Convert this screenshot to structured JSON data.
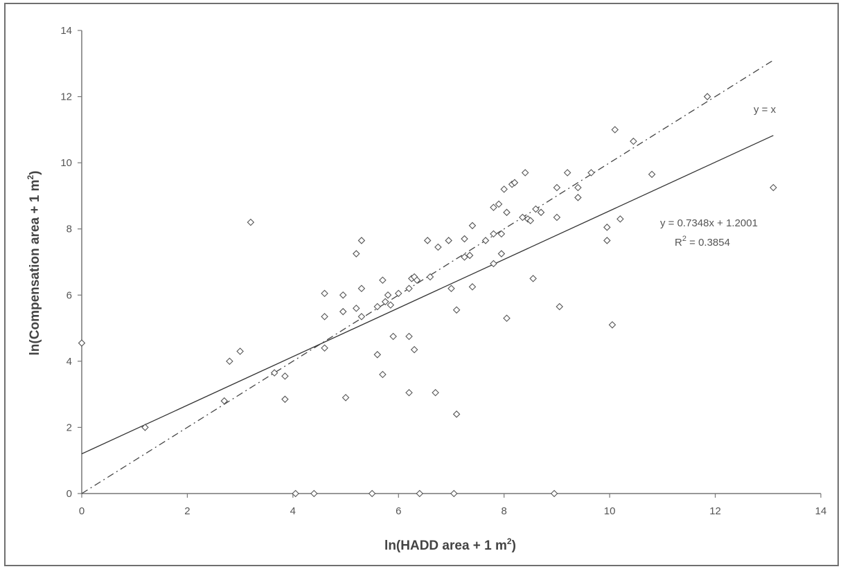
{
  "chart_data": {
    "type": "scatter",
    "xlabel_main": "ln(HADD area + 1 m",
    "xlabel_sup": "2",
    "xlabel_end": ")",
    "ylabel_main": "ln(Compensation area + 1 m",
    "ylabel_sup": "2",
    "ylabel_end": ")",
    "xlim": [
      0,
      14
    ],
    "ylim": [
      0,
      14
    ],
    "xticks": [
      0,
      2,
      4,
      6,
      8,
      10,
      12,
      14
    ],
    "yticks": [
      0,
      2,
      4,
      6,
      8,
      10,
      12,
      14
    ],
    "grid": false,
    "points": [
      [
        0.0,
        4.55
      ],
      [
        1.2,
        2.0
      ],
      [
        2.7,
        2.8
      ],
      [
        2.8,
        4.0
      ],
      [
        3.0,
        4.3
      ],
      [
        3.2,
        8.2
      ],
      [
        3.65,
        3.65
      ],
      [
        3.85,
        3.55
      ],
      [
        3.85,
        2.85
      ],
      [
        4.05,
        0.0
      ],
      [
        4.4,
        0.0
      ],
      [
        4.6,
        6.05
      ],
      [
        4.6,
        5.35
      ],
      [
        4.6,
        4.4
      ],
      [
        4.95,
        6.0
      ],
      [
        4.95,
        5.5
      ],
      [
        5.0,
        2.9
      ],
      [
        5.2,
        7.25
      ],
      [
        5.2,
        5.6
      ],
      [
        5.3,
        7.65
      ],
      [
        5.3,
        6.2
      ],
      [
        5.3,
        5.35
      ],
      [
        5.5,
        0.0
      ],
      [
        5.6,
        5.65
      ],
      [
        5.6,
        4.2
      ],
      [
        5.7,
        6.45
      ],
      [
        5.7,
        3.6
      ],
      [
        5.75,
        5.8
      ],
      [
        5.8,
        6.0
      ],
      [
        5.85,
        5.7
      ],
      [
        5.9,
        4.75
      ],
      [
        6.0,
        6.05
      ],
      [
        6.2,
        6.2
      ],
      [
        6.2,
        4.75
      ],
      [
        6.2,
        3.05
      ],
      [
        6.25,
        6.5
      ],
      [
        6.3,
        6.55
      ],
      [
        6.3,
        4.35
      ],
      [
        6.35,
        6.45
      ],
      [
        6.4,
        0.0
      ],
      [
        6.55,
        7.65
      ],
      [
        6.6,
        6.55
      ],
      [
        6.7,
        3.05
      ],
      [
        6.75,
        7.45
      ],
      [
        6.95,
        7.65
      ],
      [
        7.0,
        6.2
      ],
      [
        7.05,
        0.0
      ],
      [
        7.1,
        5.55
      ],
      [
        7.1,
        2.4
      ],
      [
        7.25,
        7.7
      ],
      [
        7.25,
        7.15
      ],
      [
        7.35,
        7.2
      ],
      [
        7.4,
        8.1
      ],
      [
        7.4,
        6.25
      ],
      [
        7.65,
        7.65
      ],
      [
        7.8,
        8.65
      ],
      [
        7.8,
        7.85
      ],
      [
        7.8,
        6.95
      ],
      [
        7.9,
        8.75
      ],
      [
        7.95,
        7.85
      ],
      [
        7.95,
        7.25
      ],
      [
        8.0,
        9.2
      ],
      [
        8.05,
        8.5
      ],
      [
        8.05,
        5.3
      ],
      [
        8.15,
        9.35
      ],
      [
        8.2,
        9.4
      ],
      [
        8.35,
        8.35
      ],
      [
        8.4,
        9.7
      ],
      [
        8.45,
        8.3
      ],
      [
        8.5,
        8.25
      ],
      [
        8.55,
        6.5
      ],
      [
        8.6,
        8.6
      ],
      [
        8.7,
        8.5
      ],
      [
        8.95,
        0.0
      ],
      [
        9.0,
        9.25
      ],
      [
        9.0,
        8.35
      ],
      [
        9.05,
        5.65
      ],
      [
        9.2,
        9.7
      ],
      [
        9.4,
        9.25
      ],
      [
        9.4,
        8.95
      ],
      [
        9.65,
        9.7
      ],
      [
        9.95,
        7.65
      ],
      [
        9.95,
        8.05
      ],
      [
        10.05,
        5.1
      ],
      [
        10.1,
        11.0
      ],
      [
        10.2,
        8.3
      ],
      [
        10.45,
        10.65
      ],
      [
        10.8,
        9.65
      ],
      [
        11.85,
        12.0
      ],
      [
        13.1,
        9.25
      ]
    ],
    "identity_line": {
      "from": [
        0,
        0
      ],
      "to": [
        13.1,
        13.1
      ],
      "label": "y = x"
    },
    "regression": {
      "slope": 0.7348,
      "intercept": 1.2001,
      "from_x": 0,
      "to_x": 13.1,
      "equation": "y = 0.7348x + 1.2001",
      "r2_main": "R",
      "r2_sup": "2",
      "r2_value": " = 0.3854"
    }
  }
}
